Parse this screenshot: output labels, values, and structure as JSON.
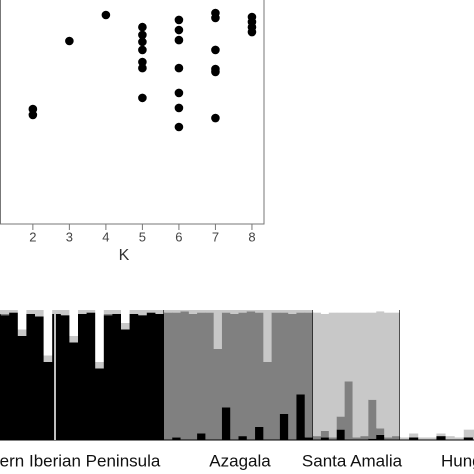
{
  "chart_data": [
    {
      "type": "scatter",
      "x_label": "K",
      "color": "#000000",
      "x": [
        2,
        2,
        3,
        4,
        5,
        5,
        5,
        5,
        5,
        5,
        5,
        6,
        6,
        6,
        6,
        6,
        6,
        6,
        7,
        7,
        7,
        7,
        7,
        7,
        8,
        8,
        8,
        8
      ],
      "values": [
        51.3,
        48.7,
        81.7,
        93.3,
        87.9,
        84.4,
        81.3,
        77.7,
        72.3,
        69.6,
        56.3,
        91.1,
        86.6,
        82.1,
        69.6,
        58.5,
        51.8,
        43.3,
        94.2,
        92.0,
        77.7,
        69.2,
        67.9,
        47.3,
        92.4,
        90.2,
        87.9,
        85.7
      ],
      "xlim": [
        1.1,
        8.33
      ],
      "ylim": [
        0,
        100
      ],
      "xticks": [
        2,
        3,
        4,
        5,
        6,
        7,
        8
      ]
    },
    {
      "type": "structure",
      "ylim": [
        0,
        100
      ],
      "colors": [
        "#000000",
        "#808080",
        "#c8c8c8",
        "#ffffff"
      ],
      "groups": [
        {
          "label": "ern Iberian Peninsula",
          "series": [
            [
              97,
              96,
              98,
              80,
              97,
              95,
              60,
              97,
              96,
              75,
              97,
              98,
              55,
              96,
              97,
              85,
              97,
              96,
              98,
              97
            ],
            [
              0,
              1,
              0,
              0,
              0,
              0,
              0,
              0,
              0,
              0,
              0,
              0,
              0,
              1,
              0,
              0,
              0,
              0,
              0,
              0
            ],
            [
              3,
              3,
              2,
              5,
              3,
              5,
              5,
              3,
              4,
              5,
              3,
              2,
              5,
              3,
              3,
              5,
              3,
              4,
              2,
              3
            ],
            [
              0,
              0,
              0,
              15,
              0,
              0,
              35,
              0,
              0,
              20,
              0,
              0,
              40,
              0,
              0,
              10,
              0,
              0,
              0,
              0
            ]
          ]
        },
        {
          "label": "Azagala",
          "series": [
            [
              0,
              2,
              0,
              0,
              5,
              0,
              0,
              25,
              0,
              3,
              0,
              10,
              0,
              0,
              20,
              0,
              35,
              2
            ],
            [
              98,
              96,
              99,
              97,
              93,
              98,
              70,
              73,
              97,
              95,
              99,
              88,
              60,
              98,
              78,
              97,
              63,
              96
            ],
            [
              2,
              2,
              1,
              3,
              2,
              2,
              30,
              2,
              3,
              2,
              1,
              2,
              40,
              2,
              2,
              3,
              2,
              2
            ],
            [
              0,
              0,
              0,
              0,
              0,
              0,
              0,
              0,
              0,
              0,
              0,
              0,
              0,
              0,
              0,
              0,
              0,
              0
            ]
          ]
        },
        {
          "label": "Santa Amalia",
          "series": [
            [
              0,
              2,
              0,
              8,
              0,
              0,
              0,
              1,
              4,
              0,
              0
            ],
            [
              3,
              5,
              2,
              10,
              45,
              2,
              3,
              30,
              5,
              2,
              3
            ],
            [
              95,
              90,
              96,
              80,
              53,
              96,
              95,
              67,
              90,
              96,
              95
            ],
            [
              2,
              3,
              2,
              2,
              2,
              2,
              2,
              2,
              1,
              2,
              2
            ]
          ]
        },
        {
          "label": "Hung",
          "series": [
            [
              0,
              2,
              0,
              0,
              3,
              0,
              0,
              2,
              0
            ],
            [
              0,
              0,
              0,
              0,
              0,
              0,
              0,
              0,
              0
            ],
            [
              2,
              3,
              2,
              2,
              2,
              3,
              2,
              6,
              8
            ],
            [
              98,
              95,
              98,
              98,
              95,
              97,
              98,
              92,
              92
            ]
          ]
        }
      ]
    }
  ]
}
